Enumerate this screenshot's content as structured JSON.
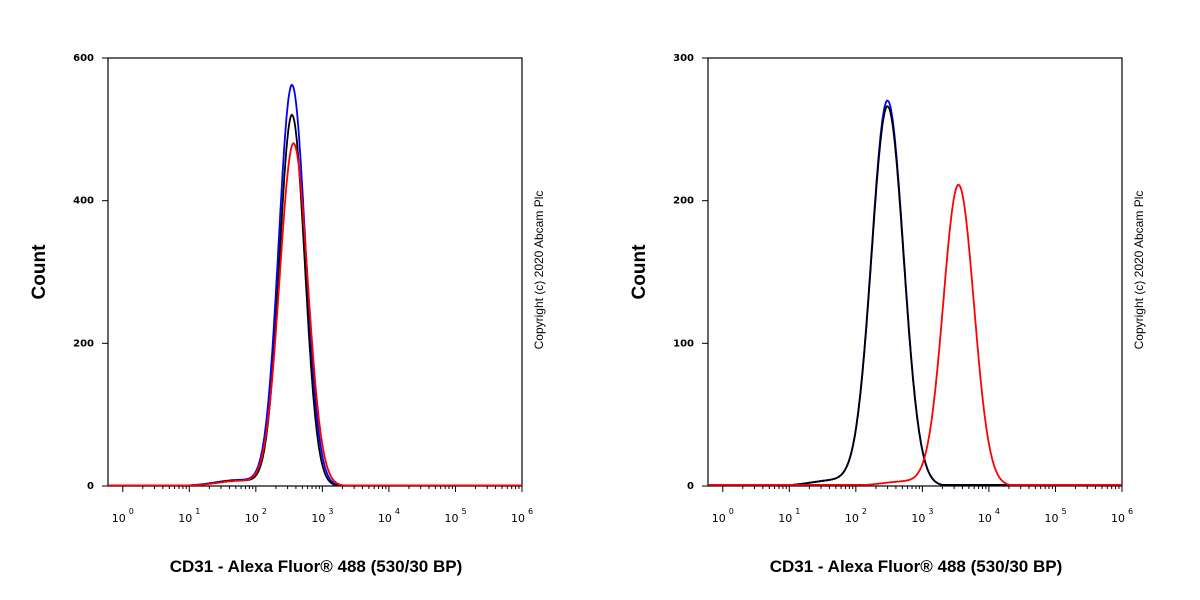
{
  "copyright": "Copyright (c) 2020 Abcam Plc",
  "chart_data": [
    {
      "type": "line",
      "xlabel": "CD31 - Alexa Fluor® 488 (530/30 BP)",
      "ylabel": "Count",
      "x_scale": "log",
      "xlim": [
        0.6,
        1000000
      ],
      "ylim": [
        0,
        600
      ],
      "yticks": [
        0,
        200,
        400,
        600
      ],
      "xticks": [
        {
          "base": "10",
          "exp": "0",
          "value": 1
        },
        {
          "base": "10",
          "exp": "1",
          "value": 10
        },
        {
          "base": "10",
          "exp": "2",
          "value": 100
        },
        {
          "base": "10",
          "exp": "3",
          "value": 1000
        },
        {
          "base": "10",
          "exp": "4",
          "value": 10000
        },
        {
          "base": "10",
          "exp": "5",
          "value": 100000
        },
        {
          "base": "10",
          "exp": "6",
          "value": 1000000
        }
      ],
      "series": [
        {
          "color": "#0000ff",
          "peak_x": 350,
          "peak_y": 562,
          "log_sigma": 0.2
        },
        {
          "color": "#000000",
          "peak_x": 350,
          "peak_y": 520,
          "log_sigma": 0.19
        },
        {
          "color": "#ff0000",
          "peak_x": 370,
          "peak_y": 480,
          "log_sigma": 0.21
        }
      ]
    },
    {
      "type": "line",
      "xlabel": "CD31 - Alexa Fluor® 488 (530/30 BP)",
      "ylabel": "Count",
      "x_scale": "log",
      "xlim": [
        0.6,
        1000000
      ],
      "ylim": [
        0,
        300
      ],
      "yticks": [
        0,
        100,
        200,
        300
      ],
      "xticks": [
        {
          "base": "10",
          "exp": "0",
          "value": 1
        },
        {
          "base": "10",
          "exp": "1",
          "value": 10
        },
        {
          "base": "10",
          "exp": "2",
          "value": 100
        },
        {
          "base": "10",
          "exp": "3",
          "value": 1000
        },
        {
          "base": "10",
          "exp": "4",
          "value": 10000
        },
        {
          "base": "10",
          "exp": "5",
          "value": 100000
        },
        {
          "base": "10",
          "exp": "6",
          "value": 1000000
        }
      ],
      "series": [
        {
          "color": "#0000ff",
          "peak_x": 300,
          "peak_y": 270,
          "log_sigma": 0.24
        },
        {
          "color": "#000000",
          "peak_x": 300,
          "peak_y": 266,
          "log_sigma": 0.24
        },
        {
          "color": "#ff0000",
          "peak_x": 3500,
          "peak_y": 211,
          "log_sigma": 0.23
        }
      ]
    }
  ]
}
